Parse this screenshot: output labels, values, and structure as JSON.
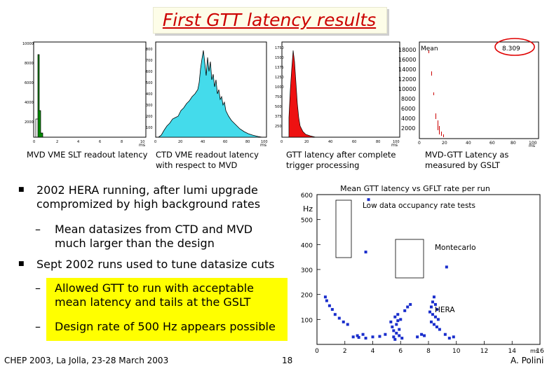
{
  "title": "First GTT latency results",
  "plots": {
    "slt_axis_label": "ms",
    "ctd_axis_label": "ms",
    "gtt_axis_label": "ms",
    "gslt_axis_label": "ms",
    "gslt_stat_label": "Mean",
    "gslt_stat_value": "8.309",
    "captions": {
      "slt": "MVD VME SLT readout latency",
      "ctd_line1": "CTD VME readout latency",
      "ctd_line2": "with respect to MVD",
      "gtt_line1": "GTT latency after complete",
      "gtt_line2": "trigger processing",
      "gslt_line1": "MVD-GTT Latency as",
      "gslt_line2": "measured by GSLT"
    }
  },
  "bullets": {
    "b1_line1": "2002 HERA running, after lumi upgrade",
    "b1_line2": "compromized by high background rates",
    "s1_line1": "Mean datasizes from CTD and MVD",
    "s1_line2": "much larger than the design",
    "b2": "Sept 2002 runs used to tune datasize cuts",
    "s2_line1": "Allowed GTT to run with acceptable",
    "s2_line2": "mean latency and tails at the GSLT",
    "s3": "Design rate of 500 Hz appears possible"
  },
  "chart_data": {
    "type": "scatter",
    "title": "Mean GTT latency vs GFLT rate per run",
    "ylabel": "Hz",
    "xlabel": "ms",
    "xlim": [
      0,
      16
    ],
    "ylim": [
      0,
      600
    ],
    "xticks": [
      "0",
      "2",
      "4",
      "6",
      "8",
      "10",
      "12",
      "14",
      "16"
    ],
    "yticks": [
      "100",
      "200",
      "300",
      "400",
      "500",
      "600"
    ],
    "annotations": [
      "Low data occupancy rate tests",
      "Montecarlo",
      "HERA"
    ],
    "series": [
      {
        "values": [
          [
            3.7,
            580
          ],
          [
            3.5,
            370
          ],
          [
            9.3,
            310
          ],
          [
            0.6,
            190
          ],
          [
            0.7,
            175
          ],
          [
            0.9,
            155
          ],
          [
            1.1,
            140
          ],
          [
            1.3,
            120
          ],
          [
            1.6,
            105
          ],
          [
            1.9,
            90
          ],
          [
            2.2,
            80
          ],
          [
            2.6,
            30
          ],
          [
            2.9,
            35
          ],
          [
            3.0,
            28
          ],
          [
            3.3,
            40
          ],
          [
            3.5,
            25
          ],
          [
            4.0,
            30
          ],
          [
            4.5,
            32
          ],
          [
            4.9,
            40
          ],
          [
            5.3,
            90
          ],
          [
            5.4,
            70
          ],
          [
            5.5,
            55
          ],
          [
            5.6,
            110
          ],
          [
            5.7,
            45
          ],
          [
            5.8,
            120
          ],
          [
            5.9,
            60
          ],
          [
            6.0,
            100
          ],
          [
            5.5,
            30
          ],
          [
            5.6,
            20
          ],
          [
            5.9,
            35
          ],
          [
            6.1,
            25
          ],
          [
            5.7,
            80
          ],
          [
            5.8,
            95
          ],
          [
            6.3,
            135
          ],
          [
            6.5,
            150
          ],
          [
            6.7,
            160
          ],
          [
            7.2,
            30
          ],
          [
            7.5,
            40
          ],
          [
            7.7,
            35
          ],
          [
            8.1,
            130
          ],
          [
            8.2,
            150
          ],
          [
            8.3,
            170
          ],
          [
            8.4,
            190
          ],
          [
            8.5,
            160
          ],
          [
            8.6,
            140
          ],
          [
            8.3,
            120
          ],
          [
            8.5,
            110
          ],
          [
            8.7,
            100
          ],
          [
            8.2,
            90
          ],
          [
            8.4,
            80
          ],
          [
            8.6,
            70
          ],
          [
            8.8,
            60
          ],
          [
            9.2,
            40
          ],
          [
            9.5,
            25
          ],
          [
            9.8,
            30
          ]
        ]
      }
    ]
  },
  "footer": {
    "left": "CHEP 2003, La Jolla, 23-28 March 2003",
    "center": "18",
    "right": "A. Polini"
  }
}
